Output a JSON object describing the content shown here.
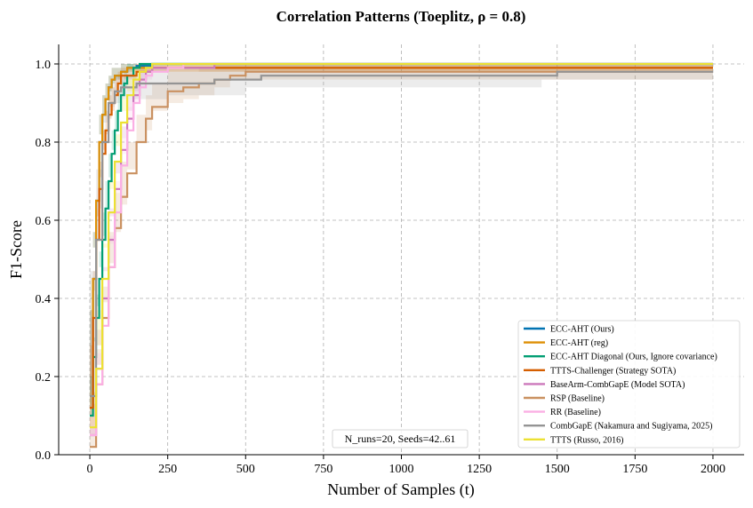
{
  "chart_data": {
    "type": "line",
    "title": "Correlation Patterns (Toeplitz, ρ = 0.8)",
    "xlabel": "Number of Samples (t)",
    "ylabel": "F1-Score",
    "xlim": [
      -100,
      2100
    ],
    "ylim": [
      0.0,
      1.05
    ],
    "x_ticks": [
      0,
      250,
      500,
      750,
      1000,
      1250,
      1500,
      1750,
      2000
    ],
    "y_ticks": [
      0.0,
      0.2,
      0.4,
      0.6,
      0.8,
      1.0
    ],
    "x_tick_labels": [
      "0",
      "250",
      "500",
      "750",
      "1000",
      "1250",
      "1500",
      "1750",
      "2000"
    ],
    "y_tick_labels": [
      "0.0",
      "0.2",
      "0.4",
      "0.6",
      "0.8",
      "1.0"
    ],
    "grid": true,
    "legend_position": "lower-right",
    "annotation": "N_runs=20, Seeds=42..61",
    "series": [
      {
        "name": "ECC-AHT (Ours)",
        "color": "#0173b2",
        "x": [
          0,
          10,
          20,
          30,
          40,
          50,
          60,
          70,
          80,
          100,
          120,
          150,
          200,
          2000
        ],
        "y": [
          0.12,
          0.45,
          0.65,
          0.8,
          0.87,
          0.91,
          0.94,
          0.96,
          0.97,
          0.98,
          0.99,
          0.995,
          1.0,
          1.0
        ],
        "band": [
          0.0,
          0.08,
          0.08,
          0.07,
          0.05,
          0.04,
          0.03,
          0.03,
          0.02,
          0.02,
          0.01,
          0.01,
          0.0,
          0.0
        ]
      },
      {
        "name": "ECC-AHT (reg)",
        "color": "#de8f05",
        "x": [
          0,
          10,
          20,
          30,
          40,
          50,
          60,
          70,
          80,
          100,
          120,
          150,
          200,
          2000
        ],
        "y": [
          0.12,
          0.45,
          0.65,
          0.8,
          0.87,
          0.91,
          0.94,
          0.96,
          0.97,
          0.98,
          0.99,
          0.99,
          0.99,
          0.99
        ],
        "band": [
          0.0,
          0.08,
          0.08,
          0.07,
          0.05,
          0.04,
          0.03,
          0.03,
          0.02,
          0.02,
          0.01,
          0.01,
          0.01,
          0.01
        ]
      },
      {
        "name": "ECC-AHT Diagonal (Ours, Ignore covariance)",
        "color": "#029e73",
        "x": [
          0,
          10,
          20,
          30,
          40,
          50,
          60,
          70,
          80,
          90,
          100,
          110,
          120,
          140,
          160,
          2000
        ],
        "y": [
          0.1,
          0.25,
          0.35,
          0.45,
          0.55,
          0.63,
          0.7,
          0.77,
          0.83,
          0.88,
          0.92,
          0.95,
          0.97,
          0.99,
          1.0,
          1.0
        ],
        "band": [
          0.0,
          0.05,
          0.06,
          0.07,
          0.07,
          0.07,
          0.07,
          0.06,
          0.05,
          0.05,
          0.04,
          0.03,
          0.03,
          0.01,
          0.0,
          0.0
        ]
      },
      {
        "name": "TTTS-Challenger (Strategy SOTA)",
        "color": "#d55e00",
        "x": [
          0,
          10,
          20,
          30,
          40,
          50,
          60,
          70,
          80,
          90,
          100,
          150,
          200,
          2000
        ],
        "y": [
          0.12,
          0.35,
          0.55,
          0.68,
          0.77,
          0.83,
          0.87,
          0.9,
          0.92,
          0.95,
          0.97,
          0.98,
          0.99,
          0.99
        ],
        "band": [
          0.0,
          0.07,
          0.08,
          0.07,
          0.06,
          0.05,
          0.05,
          0.04,
          0.04,
          0.03,
          0.02,
          0.02,
          0.01,
          0.01
        ]
      },
      {
        "name": "BaseArm-CombGapE (Model SOTA)",
        "color": "#cc78bc",
        "x": [
          0,
          20,
          40,
          60,
          80,
          100,
          120,
          140,
          160,
          180,
          200,
          400,
          2000
        ],
        "y": [
          0.05,
          0.22,
          0.4,
          0.55,
          0.68,
          0.78,
          0.86,
          0.92,
          0.96,
          0.98,
          0.99,
          1.0,
          1.0
        ],
        "band": [
          0.0,
          0.06,
          0.08,
          0.08,
          0.07,
          0.06,
          0.05,
          0.04,
          0.03,
          0.02,
          0.01,
          0.0,
          0.0
        ]
      },
      {
        "name": "RSP (Baseline)",
        "color": "#ca9161",
        "x": [
          0,
          20,
          40,
          60,
          80,
          100,
          120,
          150,
          180,
          200,
          250,
          300,
          350,
          400,
          450,
          500,
          2000
        ],
        "y": [
          0.02,
          0.18,
          0.35,
          0.48,
          0.58,
          0.66,
          0.72,
          0.8,
          0.86,
          0.89,
          0.93,
          0.94,
          0.95,
          0.96,
          0.97,
          0.98,
          0.98
        ],
        "band": [
          0.0,
          0.05,
          0.08,
          0.09,
          0.09,
          0.09,
          0.08,
          0.07,
          0.06,
          0.06,
          0.05,
          0.04,
          0.04,
          0.04,
          0.03,
          0.02,
          0.02
        ]
      },
      {
        "name": "RR (Baseline)",
        "color": "#fbafe4",
        "x": [
          0,
          20,
          40,
          60,
          80,
          100,
          120,
          140,
          160,
          180,
          200,
          250,
          300,
          2000
        ],
        "y": [
          0.05,
          0.18,
          0.33,
          0.48,
          0.62,
          0.74,
          0.83,
          0.9,
          0.94,
          0.97,
          0.98,
          0.99,
          1.0,
          1.0
        ],
        "band": [
          0.0,
          0.05,
          0.07,
          0.08,
          0.08,
          0.07,
          0.06,
          0.05,
          0.04,
          0.03,
          0.02,
          0.01,
          0.0,
          0.0
        ]
      },
      {
        "name": "CombGapE (Nakamura and Sugiyama, 2025)",
        "color": "#949494",
        "x": [
          0,
          20,
          40,
          60,
          80,
          100,
          150,
          250,
          400,
          500,
          550,
          1450,
          1500,
          2000
        ],
        "y": [
          0.15,
          0.55,
          0.8,
          0.9,
          0.93,
          0.94,
          0.95,
          0.95,
          0.96,
          0.96,
          0.97,
          0.97,
          0.98,
          0.98
        ],
        "band": [
          0.0,
          0.08,
          0.07,
          0.05,
          0.04,
          0.04,
          0.04,
          0.04,
          0.04,
          0.04,
          0.03,
          0.03,
          0.02,
          0.02
        ]
      },
      {
        "name": "TTTS (Russo, 2016)",
        "color": "#ece133",
        "x": [
          0,
          20,
          40,
          60,
          80,
          100,
          120,
          140,
          160,
          180,
          200,
          250,
          2000
        ],
        "y": [
          0.07,
          0.22,
          0.45,
          0.62,
          0.75,
          0.85,
          0.92,
          0.96,
          0.98,
          0.99,
          1.0,
          1.0,
          1.0
        ],
        "band": [
          0.0,
          0.06,
          0.08,
          0.08,
          0.07,
          0.06,
          0.04,
          0.03,
          0.02,
          0.01,
          0.0,
          0.0,
          0.0
        ]
      }
    ]
  }
}
